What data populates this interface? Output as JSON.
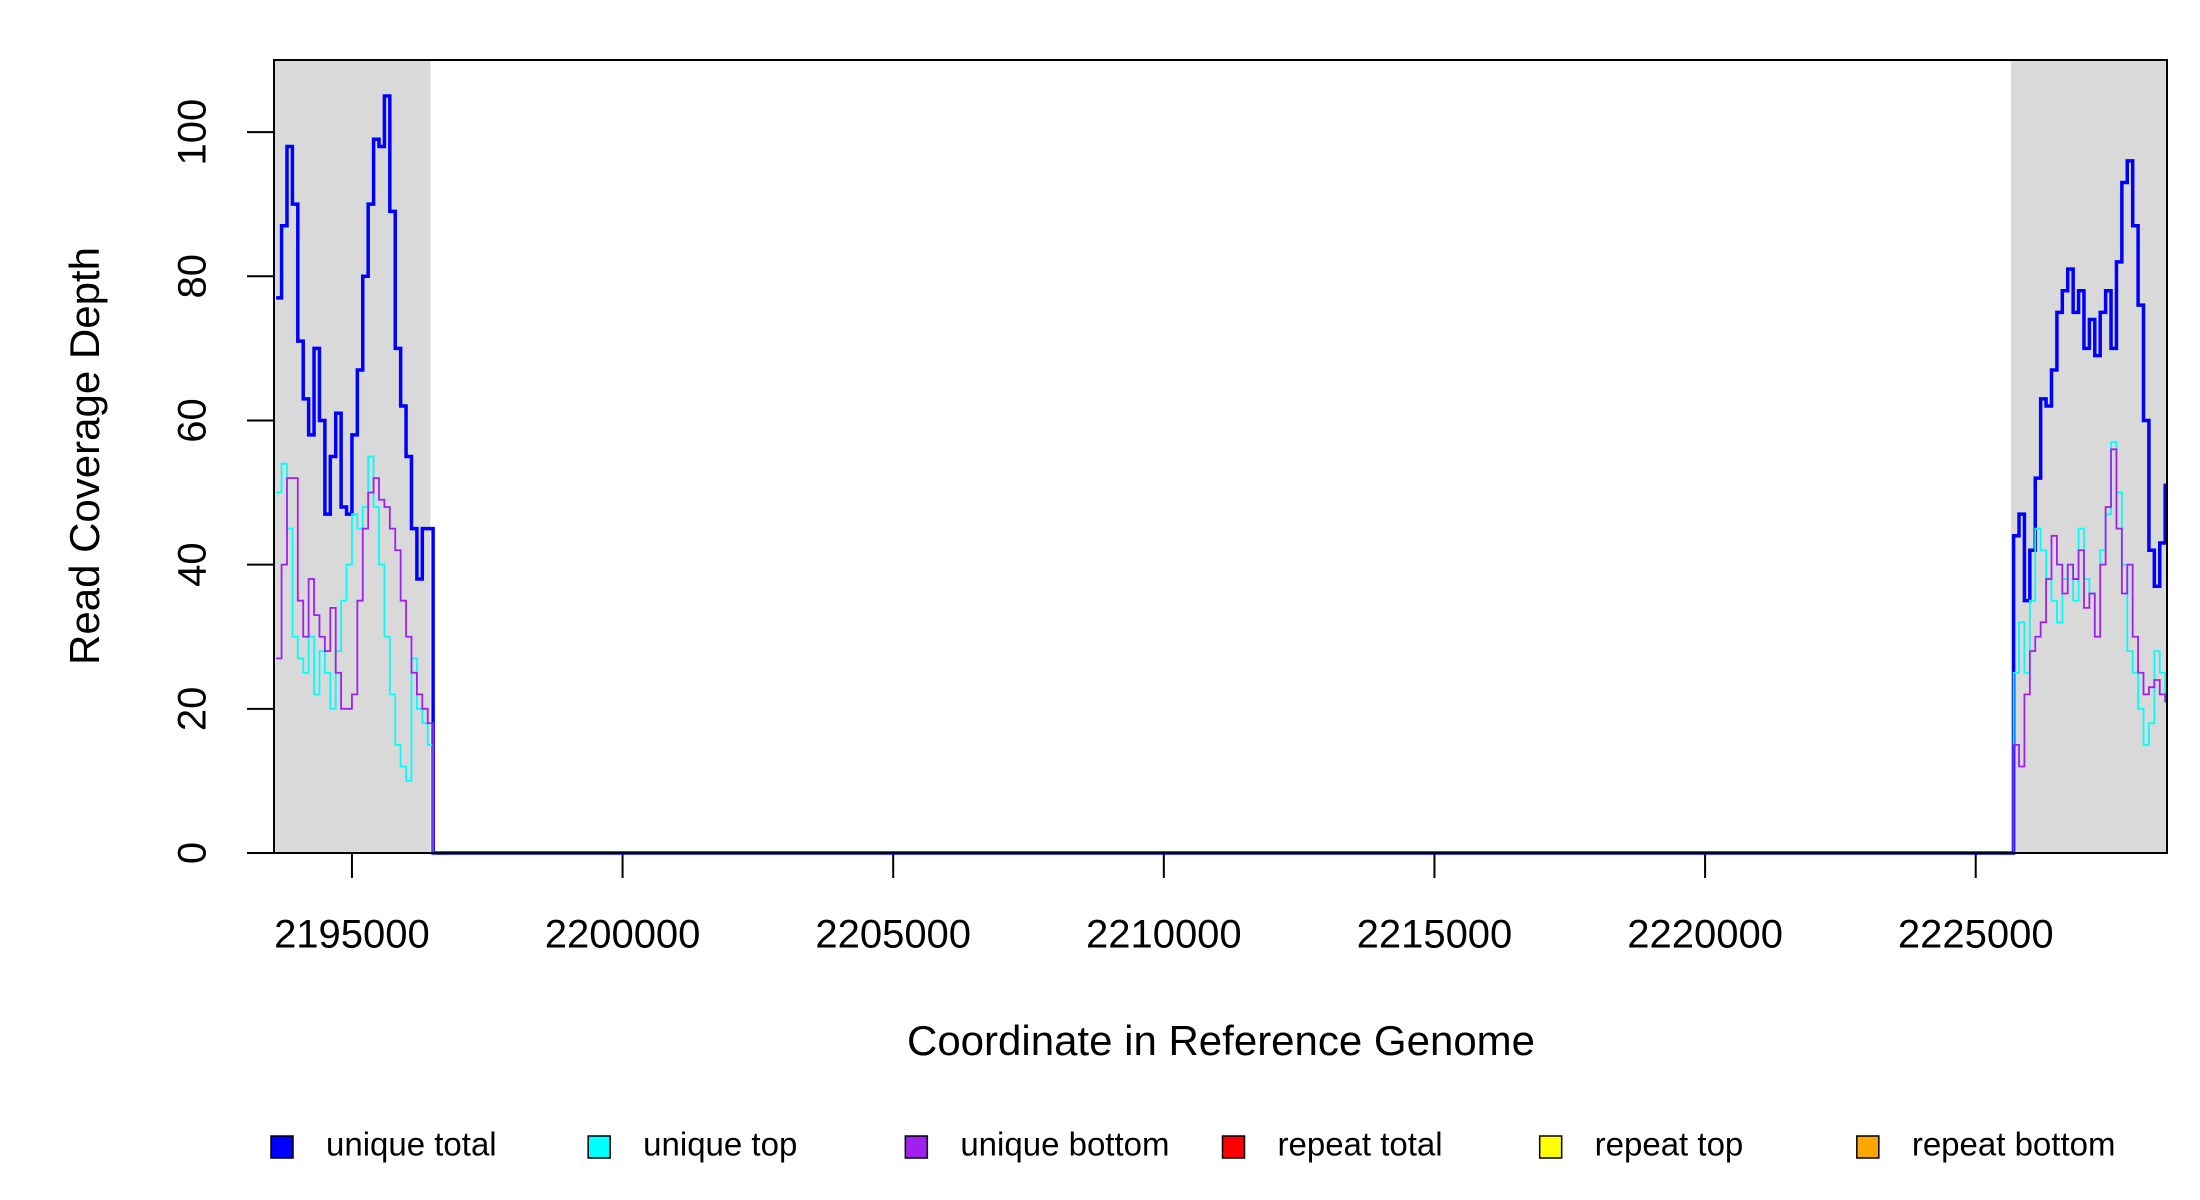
{
  "chart_data": {
    "type": "step",
    "xlabel": "Coordinate in Reference Genome",
    "ylabel": "Read Coverage Depth",
    "xlim": [
      2193560,
      2228534
    ],
    "ylim": [
      0,
      110
    ],
    "xticks": [
      2195000,
      2200000,
      2205000,
      2210000,
      2215000,
      2220000,
      2225000
    ],
    "yticks": [
      0,
      20,
      40,
      60,
      80,
      100
    ],
    "legend": "bottom",
    "shaded_regions": [
      [
        2193560,
        2196450
      ],
      [
        2225650,
        2228534
      ]
    ],
    "shade_color": "#d9d9d9",
    "x": [
      2193600,
      2193700,
      2193800,
      2193900,
      2194000,
      2194100,
      2194200,
      2194300,
      2194400,
      2194500,
      2194600,
      2194700,
      2194800,
      2194900,
      2195000,
      2195100,
      2195200,
      2195300,
      2195400,
      2195500,
      2195600,
      2195700,
      2195800,
      2195900,
      2196000,
      2196100,
      2196200,
      2196300,
      2196400,
      2196500,
      2225600,
      2225700,
      2225800,
      2225900,
      2226000,
      2226100,
      2226200,
      2226300,
      2226400,
      2226500,
      2226600,
      2226700,
      2226800,
      2226900,
      2227000,
      2227100,
      2227200,
      2227300,
      2227400,
      2227500,
      2227600,
      2227700,
      2227800,
      2227900,
      2228000,
      2228100,
      2228200,
      2228300,
      2228400,
      2228500
    ],
    "series": [
      {
        "name": "unique total",
        "color": "#0000ff",
        "values": [
          77,
          87,
          98,
          90,
          71,
          63,
          58,
          70,
          60,
          47,
          55,
          61,
          48,
          47,
          58,
          67,
          80,
          90,
          99,
          98,
          105,
          89,
          70,
          62,
          55,
          45,
          38,
          45,
          45,
          0,
          0,
          44,
          47,
          35,
          42,
          52,
          63,
          62,
          67,
          75,
          78,
          81,
          75,
          78,
          70,
          74,
          69,
          75,
          78,
          70,
          82,
          93,
          96,
          87,
          76,
          60,
          42,
          37,
          43,
          51
        ]
      },
      {
        "name": "unique top",
        "color": "#00ffff",
        "values": [
          50,
          54,
          45,
          30,
          27,
          25,
          30,
          22,
          28,
          25,
          20,
          28,
          35,
          40,
          47,
          45,
          48,
          55,
          48,
          40,
          30,
          22,
          15,
          12,
          10,
          27,
          20,
          18,
          15,
          0,
          0,
          25,
          32,
          25,
          35,
          45,
          42,
          38,
          35,
          32,
          38,
          40,
          35,
          45,
          38,
          36,
          30,
          42,
          47,
          57,
          50,
          40,
          28,
          25,
          20,
          15,
          18,
          28,
          25,
          22
        ]
      },
      {
        "name": "unique bottom",
        "color": "#a020f0",
        "values": [
          27,
          40,
          52,
          52,
          35,
          30,
          38,
          33,
          30,
          28,
          34,
          25,
          20,
          20,
          22,
          35,
          45,
          50,
          52,
          49,
          48,
          45,
          42,
          35,
          30,
          25,
          22,
          20,
          18,
          0,
          0,
          15,
          12,
          22,
          28,
          30,
          32,
          38,
          44,
          40,
          36,
          40,
          38,
          42,
          34,
          36,
          30,
          40,
          48,
          56,
          45,
          36,
          40,
          30,
          25,
          22,
          23,
          24,
          22,
          21
        ]
      },
      {
        "name": "repeat total",
        "color": "#ff0000",
        "values": [
          0,
          0,
          0,
          0,
          0,
          0,
          0,
          0,
          0,
          0,
          0,
          0,
          0,
          0,
          0,
          0,
          0,
          0,
          0,
          0,
          0,
          0,
          0,
          0,
          0,
          0,
          0,
          0,
          0,
          0,
          0,
          0,
          0,
          0,
          0,
          0,
          0,
          0,
          0,
          0,
          0,
          0,
          0,
          0,
          0,
          0,
          0,
          0,
          0,
          0,
          0,
          0,
          0,
          0,
          0,
          0,
          0,
          0,
          0,
          0
        ]
      },
      {
        "name": "repeat top",
        "color": "#ffff00",
        "values": [
          0,
          0,
          0,
          0,
          0,
          0,
          0,
          0,
          0,
          0,
          0,
          0,
          0,
          0,
          0,
          0,
          0,
          0,
          0,
          0,
          0,
          0,
          0,
          0,
          0,
          0,
          0,
          0,
          0,
          0,
          0,
          0,
          0,
          0,
          0,
          0,
          0,
          0,
          0,
          0,
          0,
          0,
          0,
          0,
          0,
          0,
          0,
          0,
          0,
          0,
          0,
          0,
          0,
          0,
          0,
          0,
          0,
          0,
          0,
          0
        ]
      },
      {
        "name": "repeat bottom",
        "color": "#ffa500",
        "values": [
          0,
          0,
          0,
          0,
          0,
          0,
          0,
          0,
          0,
          0,
          0,
          0,
          0,
          0,
          0,
          0,
          0,
          0,
          0,
          0,
          0,
          0,
          0,
          0,
          0,
          0,
          0,
          0,
          0,
          0,
          0,
          0,
          0,
          0,
          0,
          0,
          0,
          0,
          0,
          0,
          0,
          0,
          0,
          0,
          0,
          0,
          0,
          0,
          0,
          0,
          0,
          0,
          0,
          0,
          0,
          0,
          0,
          0,
          0,
          0
        ]
      }
    ]
  }
}
